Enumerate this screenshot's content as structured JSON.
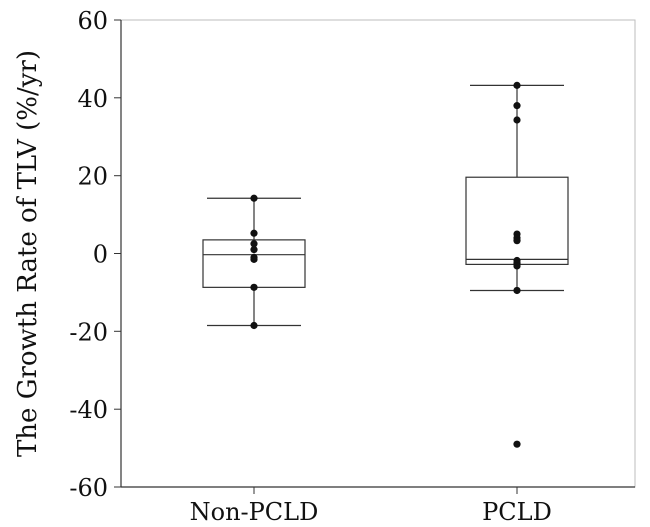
{
  "chart_data": {
    "type": "box",
    "title": "",
    "xlabel": "",
    "ylabel": "The Growth Rate of TLV (%/yr)",
    "ylim": [
      -60,
      60
    ],
    "yticks": [
      60,
      40,
      20,
      0,
      -20,
      -40,
      -60
    ],
    "grid": false,
    "categories": [
      "Non-PCLD",
      "PCLD"
    ],
    "boxes": [
      {
        "name": "Non-PCLD",
        "whisker_low": -18.5,
        "q1": -8.7,
        "median": -0.3,
        "q3": 3.5,
        "whisker_high": 14.2,
        "points": [
          14.2,
          5.2,
          2.5,
          1.0,
          -1.0,
          -1.5,
          -8.7,
          -18.5
        ]
      },
      {
        "name": "PCLD",
        "whisker_low": -9.5,
        "q1": -2.8,
        "median": -1.5,
        "q3": 19.6,
        "whisker_high": 43.2,
        "points": [
          43.2,
          38.0,
          34.3,
          5.0,
          4.0,
          3.3,
          -1.8,
          -2.5,
          -3.2,
          -9.5,
          -49.0
        ]
      }
    ]
  }
}
